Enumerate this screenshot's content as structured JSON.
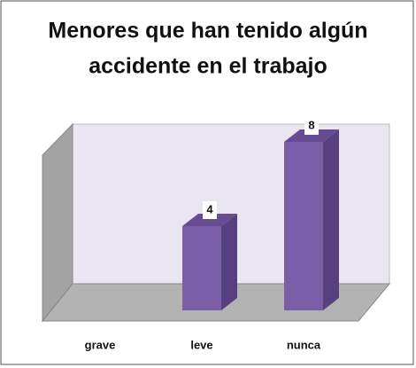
{
  "chart_data": {
    "type": "bar3d",
    "title_lines": [
      "Menores que han tenido algún",
      "accidente en el trabajo"
    ],
    "categories": [
      "grave",
      "leve",
      "nunca"
    ],
    "values": [
      0,
      4,
      8
    ],
    "value_labels": [
      null,
      "4",
      "8"
    ],
    "color": "#7b5ea8"
  }
}
